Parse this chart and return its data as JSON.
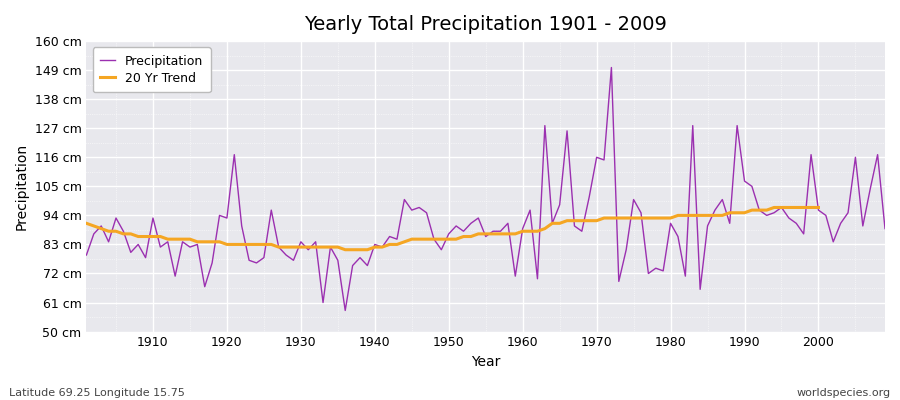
{
  "title": "Yearly Total Precipitation 1901 - 2009",
  "xlabel": "Year",
  "ylabel": "Precipitation",
  "subtitle_left": "Latitude 69.25 Longitude 15.75",
  "subtitle_right": "worldspecies.org",
  "ylim": [
    50,
    160
  ],
  "yticks": [
    50,
    61,
    72,
    83,
    94,
    105,
    116,
    127,
    138,
    149,
    160
  ],
  "ytick_labels": [
    "50 cm",
    "61 cm",
    "72 cm",
    "83 cm",
    "94 cm",
    "105 cm",
    "116 cm",
    "127 cm",
    "138 cm",
    "149 cm",
    "160 cm"
  ],
  "fig_bg_color": "#ffffff",
  "axes_bg_color": "#e8e8ed",
  "grid_color": "#ffffff",
  "precip_color": "#9b30b0",
  "trend_color": "#f5a623",
  "years": [
    1901,
    1902,
    1903,
    1904,
    1905,
    1906,
    1907,
    1908,
    1909,
    1910,
    1911,
    1912,
    1913,
    1914,
    1915,
    1916,
    1917,
    1918,
    1919,
    1920,
    1921,
    1922,
    1923,
    1924,
    1925,
    1926,
    1927,
    1928,
    1929,
    1930,
    1931,
    1932,
    1933,
    1934,
    1935,
    1936,
    1937,
    1938,
    1939,
    1940,
    1941,
    1942,
    1943,
    1944,
    1945,
    1946,
    1947,
    1948,
    1949,
    1950,
    1951,
    1952,
    1953,
    1954,
    1955,
    1956,
    1957,
    1958,
    1959,
    1960,
    1961,
    1962,
    1963,
    1964,
    1965,
    1966,
    1967,
    1968,
    1969,
    1970,
    1971,
    1972,
    1973,
    1974,
    1975,
    1976,
    1977,
    1978,
    1979,
    1980,
    1981,
    1982,
    1983,
    1984,
    1985,
    1986,
    1987,
    1988,
    1989,
    1990,
    1991,
    1992,
    1993,
    1994,
    1995,
    1996,
    1997,
    1998,
    1999,
    2000,
    2001,
    2002,
    2003,
    2004,
    2005,
    2006,
    2007,
    2008,
    2009
  ],
  "precipitation": [
    79,
    87,
    90,
    84,
    93,
    88,
    80,
    83,
    78,
    93,
    82,
    84,
    71,
    84,
    82,
    83,
    67,
    76,
    94,
    93,
    117,
    90,
    77,
    76,
    78,
    96,
    82,
    79,
    77,
    84,
    81,
    84,
    61,
    82,
    77,
    58,
    75,
    78,
    75,
    83,
    82,
    86,
    85,
    100,
    96,
    97,
    95,
    85,
    81,
    87,
    90,
    88,
    91,
    93,
    86,
    88,
    88,
    91,
    71,
    89,
    96,
    70,
    128,
    91,
    98,
    126,
    90,
    88,
    101,
    116,
    115,
    150,
    69,
    81,
    100,
    95,
    72,
    74,
    73,
    91,
    86,
    71,
    128,
    66,
    90,
    96,
    100,
    91,
    128,
    107,
    105,
    96,
    94,
    95,
    97,
    93,
    91,
    87,
    117,
    96,
    94,
    84,
    91,
    95,
    116,
    90,
    104,
    117,
    89
  ],
  "trend": [
    91,
    90,
    89,
    88,
    88,
    87,
    87,
    86,
    86,
    86,
    86,
    85,
    85,
    85,
    85,
    84,
    84,
    84,
    84,
    83,
    83,
    83,
    83,
    83,
    83,
    83,
    82,
    82,
    82,
    82,
    82,
    82,
    82,
    82,
    82,
    81,
    81,
    81,
    81,
    82,
    82,
    83,
    83,
    84,
    85,
    85,
    85,
    85,
    85,
    85,
    85,
    86,
    86,
    87,
    87,
    87,
    87,
    87,
    87,
    88,
    88,
    88,
    89,
    91,
    91,
    92,
    92,
    92,
    92,
    92,
    93,
    93,
    93,
    93,
    93,
    93,
    93,
    93,
    93,
    93,
    94,
    94,
    94,
    94,
    94,
    94,
    94,
    95,
    95,
    95,
    96,
    96,
    96,
    97,
    97,
    97,
    97,
    97,
    97,
    97
  ],
  "xticks": [
    1910,
    1920,
    1930,
    1940,
    1950,
    1960,
    1970,
    1980,
    1990,
    2000
  ],
  "xlim": [
    1901,
    2009
  ],
  "title_fontsize": 14,
  "axis_label_fontsize": 10,
  "tick_fontsize": 9,
  "legend_fontsize": 9,
  "subtitle_fontsize": 8
}
